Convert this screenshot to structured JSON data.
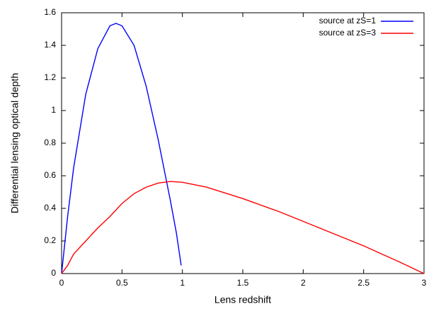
{
  "chart_data": {
    "type": "line",
    "x_label": "Lens redshift",
    "y_label": "Differential lensing optical depth",
    "xlim": [
      0,
      3
    ],
    "ylim": [
      0,
      1.6
    ],
    "xticks": [
      0,
      0.5,
      1,
      1.5,
      2,
      2.5,
      3
    ],
    "yticks": [
      0,
      0.2,
      0.4,
      0.6,
      0.8,
      1,
      1.2,
      1.4,
      1.6
    ],
    "legend": "top-right",
    "series": [
      {
        "name": "source at zS=1",
        "color": "#0000ff",
        "x": [
          0,
          0.05,
          0.1,
          0.2,
          0.3,
          0.4,
          0.45,
          0.5,
          0.6,
          0.7,
          0.8,
          0.9,
          0.95,
          0.99
        ],
        "values": [
          0,
          0.35,
          0.65,
          1.1,
          1.38,
          1.52,
          1.535,
          1.52,
          1.4,
          1.15,
          0.82,
          0.45,
          0.25,
          0.05
        ]
      },
      {
        "name": "source at zS=3",
        "color": "#ff0000",
        "x": [
          0,
          0.05,
          0.1,
          0.2,
          0.3,
          0.4,
          0.5,
          0.6,
          0.7,
          0.8,
          0.9,
          1.0,
          1.2,
          1.5,
          1.8,
          2.0,
          2.5,
          2.8,
          3.0
        ],
        "values": [
          0,
          0.05,
          0.12,
          0.2,
          0.28,
          0.35,
          0.43,
          0.49,
          0.53,
          0.555,
          0.565,
          0.56,
          0.53,
          0.46,
          0.38,
          0.32,
          0.17,
          0.07,
          0
        ]
      }
    ]
  }
}
